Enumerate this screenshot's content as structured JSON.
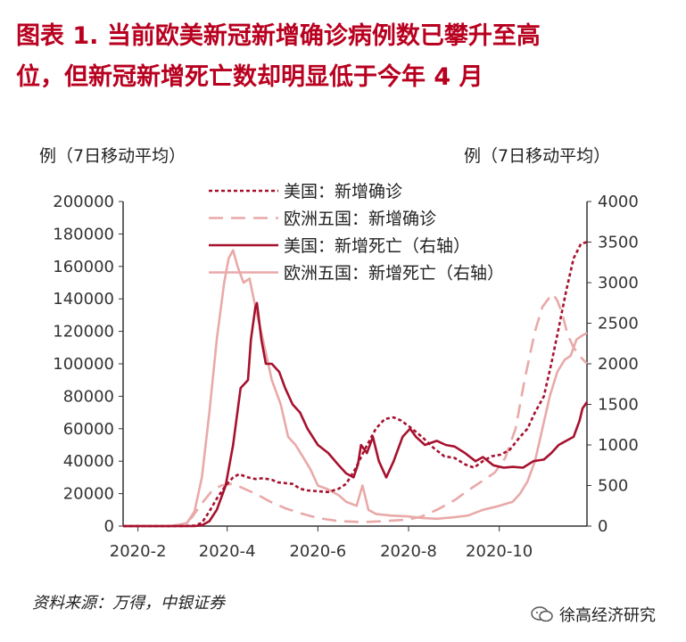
{
  "title": {
    "line1": "图表 1.  当前欧美新冠新增确诊病例数已攀升至高",
    "line2": "位，但新冠新增死亡数却明显低于今年 4 月"
  },
  "source": "资料来源：万得，中银证券",
  "watermark": "徐高经济研究",
  "chart_data": {
    "type": "line",
    "ylabel_left": "例（7日移动平均）",
    "ylabel_right": "例（7日移动平均）",
    "x_ticks": [
      "2020-2",
      "2020-4",
      "2020-6",
      "2020-8",
      "2020-10"
    ],
    "xlim": [
      "2020-01-22",
      "2020-11-29"
    ],
    "ylim_left": [
      0,
      200000
    ],
    "ylim_right": [
      0,
      4000
    ],
    "yticks_left": [
      "0",
      "20000",
      "40000",
      "60000",
      "80000",
      "100000",
      "120000",
      "140000",
      "160000",
      "180000",
      "200000"
    ],
    "yticks_right": [
      "0",
      "500",
      "1000",
      "1500",
      "2000",
      "2500",
      "3000",
      "3500",
      "4000"
    ],
    "colors": {
      "dark_red": "#a6112e",
      "light_pink": "#e9a9a9"
    },
    "series": [
      {
        "name": "美国：新增确诊",
        "axis": "left",
        "style": "dotted",
        "color": "#a6112e",
        "points": [
          [
            "2020-01-22",
            0
          ],
          [
            "2020-03-01",
            0
          ],
          [
            "2020-03-10",
            300
          ],
          [
            "2020-03-15",
            2000
          ],
          [
            "2020-03-20",
            9000
          ],
          [
            "2020-03-25",
            17000
          ],
          [
            "2020-03-31",
            25000
          ],
          [
            "2020-04-05",
            30000
          ],
          [
            "2020-04-09",
            32000
          ],
          [
            "2020-04-15",
            30000
          ],
          [
            "2020-04-20",
            29000
          ],
          [
            "2020-04-25",
            29500
          ],
          [
            "2020-05-01",
            28500
          ],
          [
            "2020-05-05",
            27000
          ],
          [
            "2020-05-10",
            26500
          ],
          [
            "2020-05-15",
            26000
          ],
          [
            "2020-05-20",
            23000
          ],
          [
            "2020-05-25",
            22000
          ],
          [
            "2020-06-01",
            21500
          ],
          [
            "2020-06-08",
            21000
          ],
          [
            "2020-06-15",
            23000
          ],
          [
            "2020-06-20",
            26000
          ],
          [
            "2020-06-26",
            35000
          ],
          [
            "2020-07-03",
            48000
          ],
          [
            "2020-07-10",
            60000
          ],
          [
            "2020-07-16",
            66000
          ],
          [
            "2020-07-22",
            67000
          ],
          [
            "2020-07-27",
            65000
          ],
          [
            "2020-08-02",
            61000
          ],
          [
            "2020-08-10",
            55000
          ],
          [
            "2020-08-18",
            48000
          ],
          [
            "2020-08-25",
            43000
          ],
          [
            "2020-09-01",
            42000
          ],
          [
            "2020-09-08",
            38000
          ],
          [
            "2020-09-14",
            36000
          ],
          [
            "2020-09-20",
            40000
          ],
          [
            "2020-09-26",
            43000
          ],
          [
            "2020-10-02",
            44000
          ],
          [
            "2020-10-08",
            47000
          ],
          [
            "2020-10-15",
            55000
          ],
          [
            "2020-10-20",
            60000
          ],
          [
            "2020-10-25",
            70000
          ],
          [
            "2020-10-31",
            80000
          ],
          [
            "2020-11-05",
            100000
          ],
          [
            "2020-11-10",
            122000
          ],
          [
            "2020-11-15",
            145000
          ],
          [
            "2020-11-20",
            165000
          ],
          [
            "2020-11-25",
            174000
          ],
          [
            "2020-11-29",
            175000
          ]
        ]
      },
      {
        "name": "欧洲五国：新增确诊",
        "axis": "left",
        "style": "dashed",
        "color": "#e9a9a9",
        "points": [
          [
            "2020-01-22",
            0
          ],
          [
            "2020-02-22",
            0
          ],
          [
            "2020-03-01",
            1000
          ],
          [
            "2020-03-08",
            5000
          ],
          [
            "2020-03-15",
            14000
          ],
          [
            "2020-03-22",
            22000
          ],
          [
            "2020-03-28",
            25000
          ],
          [
            "2020-04-04",
            26000
          ],
          [
            "2020-04-10",
            24000
          ],
          [
            "2020-04-20",
            20000
          ],
          [
            "2020-04-30",
            15000
          ],
          [
            "2020-05-10",
            11000
          ],
          [
            "2020-05-20",
            8000
          ],
          [
            "2020-06-01",
            5000
          ],
          [
            "2020-06-15",
            3000
          ],
          [
            "2020-07-01",
            2500
          ],
          [
            "2020-07-15",
            3000
          ],
          [
            "2020-08-01",
            4000
          ],
          [
            "2020-08-10",
            6000
          ],
          [
            "2020-08-20",
            10000
          ],
          [
            "2020-09-01",
            16000
          ],
          [
            "2020-09-10",
            22000
          ],
          [
            "2020-09-20",
            28000
          ],
          [
            "2020-09-28",
            33000
          ],
          [
            "2020-10-05",
            42000
          ],
          [
            "2020-10-12",
            60000
          ],
          [
            "2020-10-18",
            90000
          ],
          [
            "2020-10-25",
            120000
          ],
          [
            "2020-10-30",
            135000
          ],
          [
            "2020-11-03",
            140000
          ],
          [
            "2020-11-06",
            143000
          ],
          [
            "2020-11-09",
            139000
          ],
          [
            "2020-11-12",
            132000
          ],
          [
            "2020-11-16",
            118000
          ],
          [
            "2020-11-20",
            110000
          ],
          [
            "2020-11-25",
            104000
          ],
          [
            "2020-11-29",
            100000
          ]
        ]
      },
      {
        "name": "美国：新增死亡（右轴）",
        "axis": "right",
        "style": "solid",
        "color": "#a6112e",
        "points": [
          [
            "2020-01-22",
            0
          ],
          [
            "2020-03-10",
            0
          ],
          [
            "2020-03-15",
            10
          ],
          [
            "2020-03-20",
            60
          ],
          [
            "2020-03-25",
            200
          ],
          [
            "2020-03-31",
            500
          ],
          [
            "2020-04-05",
            1000
          ],
          [
            "2020-04-10",
            1700
          ],
          [
            "2020-04-15",
            1800
          ],
          [
            "2020-04-17",
            2300
          ],
          [
            "2020-04-20",
            2700
          ],
          [
            "2020-04-21",
            2750
          ],
          [
            "2020-04-24",
            2300
          ],
          [
            "2020-04-27",
            2000
          ],
          [
            "2020-05-01",
            2000
          ],
          [
            "2020-05-06",
            1900
          ],
          [
            "2020-05-10",
            1700
          ],
          [
            "2020-05-15",
            1500
          ],
          [
            "2020-05-20",
            1400
          ],
          [
            "2020-05-25",
            1200
          ],
          [
            "2020-06-01",
            1000
          ],
          [
            "2020-06-08",
            900
          ],
          [
            "2020-06-15",
            750
          ],
          [
            "2020-06-20",
            650
          ],
          [
            "2020-06-25",
            600
          ],
          [
            "2020-06-28",
            760
          ],
          [
            "2020-06-30",
            1000
          ],
          [
            "2020-07-04",
            900
          ],
          [
            "2020-07-08",
            1100
          ],
          [
            "2020-07-12",
            800
          ],
          [
            "2020-07-17",
            600
          ],
          [
            "2020-07-22",
            800
          ],
          [
            "2020-07-28",
            1100
          ],
          [
            "2020-08-02",
            1200
          ],
          [
            "2020-08-06",
            1100
          ],
          [
            "2020-08-12",
            1000
          ],
          [
            "2020-08-20",
            1050
          ],
          [
            "2020-08-26",
            1000
          ],
          [
            "2020-09-01",
            980
          ],
          [
            "2020-09-08",
            900
          ],
          [
            "2020-09-15",
            800
          ],
          [
            "2020-09-20",
            850
          ],
          [
            "2020-09-27",
            750
          ],
          [
            "2020-10-04",
            720
          ],
          [
            "2020-10-10",
            730
          ],
          [
            "2020-10-17",
            720
          ],
          [
            "2020-10-24",
            800
          ],
          [
            "2020-10-31",
            820
          ],
          [
            "2020-11-05",
            900
          ],
          [
            "2020-11-10",
            1000
          ],
          [
            "2020-11-15",
            1050
          ],
          [
            "2020-11-20",
            1100
          ],
          [
            "2020-11-24",
            1300
          ],
          [
            "2020-11-26",
            1450
          ],
          [
            "2020-11-29",
            1530
          ]
        ]
      },
      {
        "name": "欧洲五国：新增死亡（右轴）",
        "axis": "right",
        "style": "solid",
        "color": "#e9a9a9",
        "points": [
          [
            "2020-01-22",
            0
          ],
          [
            "2020-02-25",
            0
          ],
          [
            "2020-03-05",
            40
          ],
          [
            "2020-03-10",
            180
          ],
          [
            "2020-03-15",
            600
          ],
          [
            "2020-03-20",
            1400
          ],
          [
            "2020-03-25",
            2300
          ],
          [
            "2020-03-30",
            3000
          ],
          [
            "2020-04-02",
            3300
          ],
          [
            "2020-04-05",
            3400
          ],
          [
            "2020-04-08",
            3200
          ],
          [
            "2020-04-12",
            3000
          ],
          [
            "2020-04-16",
            3050
          ],
          [
            "2020-04-20",
            2700
          ],
          [
            "2020-04-25",
            2300
          ],
          [
            "2020-05-01",
            1800
          ],
          [
            "2020-05-07",
            1500
          ],
          [
            "2020-05-12",
            1100
          ],
          [
            "2020-05-17",
            1000
          ],
          [
            "2020-05-22",
            850
          ],
          [
            "2020-05-27",
            700
          ],
          [
            "2020-06-01",
            500
          ],
          [
            "2020-06-08",
            450
          ],
          [
            "2020-06-15",
            380
          ],
          [
            "2020-06-20",
            300
          ],
          [
            "2020-06-27",
            250
          ],
          [
            "2020-07-01",
            500
          ],
          [
            "2020-07-03",
            350
          ],
          [
            "2020-07-05",
            200
          ],
          [
            "2020-07-10",
            150
          ],
          [
            "2020-07-20",
            130
          ],
          [
            "2020-07-31",
            120
          ],
          [
            "2020-08-10",
            100
          ],
          [
            "2020-08-20",
            90
          ],
          [
            "2020-09-01",
            110
          ],
          [
            "2020-09-10",
            130
          ],
          [
            "2020-09-20",
            200
          ],
          [
            "2020-10-01",
            250
          ],
          [
            "2020-10-10",
            300
          ],
          [
            "2020-10-15",
            400
          ],
          [
            "2020-10-20",
            550
          ],
          [
            "2020-10-25",
            800
          ],
          [
            "2020-10-30",
            1200
          ],
          [
            "2020-11-04",
            1600
          ],
          [
            "2020-11-09",
            1900
          ],
          [
            "2020-11-14",
            2050
          ],
          [
            "2020-11-18",
            2100
          ],
          [
            "2020-11-22",
            2300
          ],
          [
            "2020-11-26",
            2350
          ],
          [
            "2020-11-29",
            2380
          ]
        ]
      }
    ]
  }
}
